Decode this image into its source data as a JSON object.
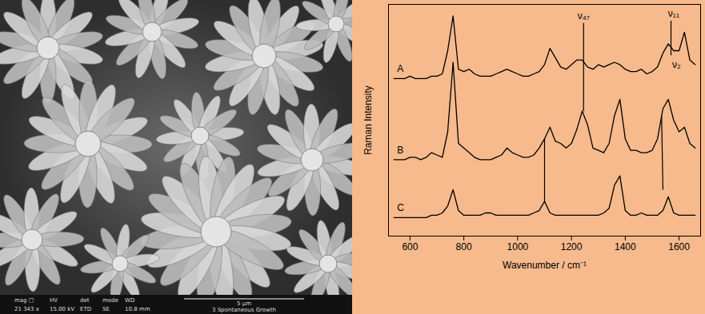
{
  "micrograph": {
    "info_labels": [
      "mag □",
      "HV",
      "det",
      "mode",
      "WD"
    ],
    "info_values": [
      "21 343 x",
      "15.00 kV",
      "ETD",
      "SE",
      "10.8 mm"
    ],
    "scale_bar": "5 μm",
    "caption": "3 Spontaneous Growth"
  },
  "chart_data": {
    "type": "line",
    "x_label": "Wavenumber / cm⁻¹",
    "y_label": "Raman Intensity",
    "xlim": [
      520,
      1680
    ],
    "xticks": [
      600,
      800,
      1000,
      1200,
      1400,
      1600
    ],
    "ylim": [
      0,
      100
    ],
    "yticks": [],
    "tick_labels": "x",
    "x": [
      540,
      560,
      580,
      600,
      620,
      640,
      660,
      680,
      700,
      720,
      740,
      760,
      780,
      800,
      820,
      840,
      860,
      880,
      900,
      920,
      940,
      960,
      980,
      1000,
      1020,
      1040,
      1060,
      1080,
      1100,
      1120,
      1140,
      1160,
      1180,
      1200,
      1220,
      1240,
      1260,
      1280,
      1300,
      1320,
      1340,
      1360,
      1380,
      1400,
      1420,
      1440,
      1460,
      1480,
      1500,
      1520,
      1540,
      1560,
      1580,
      1600,
      1620,
      1640,
      1660
    ],
    "series": [
      {
        "name": "A",
        "color": "#000000",
        "values": [
          68,
          68,
          68,
          69,
          68,
          68,
          68,
          69,
          69,
          70,
          80,
          95,
          72,
          71,
          72,
          70,
          69,
          69,
          69,
          70,
          71,
          72,
          71,
          70,
          69,
          69,
          70,
          71,
          74,
          81,
          77,
          73,
          72,
          74,
          76,
          76,
          73,
          72,
          74,
          73,
          74,
          75,
          74,
          72,
          71,
          71,
          72,
          70,
          71,
          73,
          79,
          83,
          80,
          80,
          88,
          76,
          74
        ]
      },
      {
        "name": "B",
        "color": "#000000",
        "values": [
          33,
          33,
          33,
          34,
          34,
          33,
          34,
          36,
          35,
          34,
          45,
          75,
          40,
          38,
          36,
          34,
          33,
          33,
          33,
          34,
          35,
          38,
          36,
          35,
          34,
          34,
          35,
          38,
          42,
          47,
          41,
          40,
          38,
          40,
          46,
          54,
          48,
          38,
          37,
          36,
          40,
          52,
          59,
          42,
          37,
          37,
          36,
          36,
          37,
          42,
          55,
          59,
          50,
          45,
          47,
          40,
          38
        ]
      },
      {
        "name": "C",
        "color": "#000000",
        "values": [
          8,
          8,
          8,
          8,
          8,
          8,
          8,
          9,
          9,
          10,
          13,
          20,
          11,
          9,
          9,
          9,
          9,
          10,
          10,
          9,
          9,
          9,
          9,
          9,
          9,
          9,
          10,
          11,
          15,
          10,
          9,
          9,
          9,
          9,
          9,
          9,
          9,
          9,
          9,
          10,
          12,
          22,
          26,
          11,
          9,
          9,
          10,
          9,
          9,
          9,
          11,
          17,
          10,
          9,
          9,
          9,
          9
        ]
      }
    ],
    "annotations": [
      {
        "text": "ν₄₇",
        "x": 1245,
        "y": 95
      },
      {
        "text": "ν₁₁",
        "x": 1580,
        "y": 96
      },
      {
        "text": "ν₂",
        "x": 1590,
        "y": 74
      }
    ],
    "segments": [
      {
        "x1": 1245,
        "y1": 92,
        "x2": 1245,
        "y2": 54
      },
      {
        "x1": 1570,
        "y1": 93,
        "x2": 1570,
        "y2": 78
      },
      {
        "x1": 1100,
        "y1": 42,
        "x2": 1100,
        "y2": 15
      },
      {
        "x1": 1535,
        "y1": 52,
        "x2": 1540,
        "y2": 20
      }
    ]
  }
}
